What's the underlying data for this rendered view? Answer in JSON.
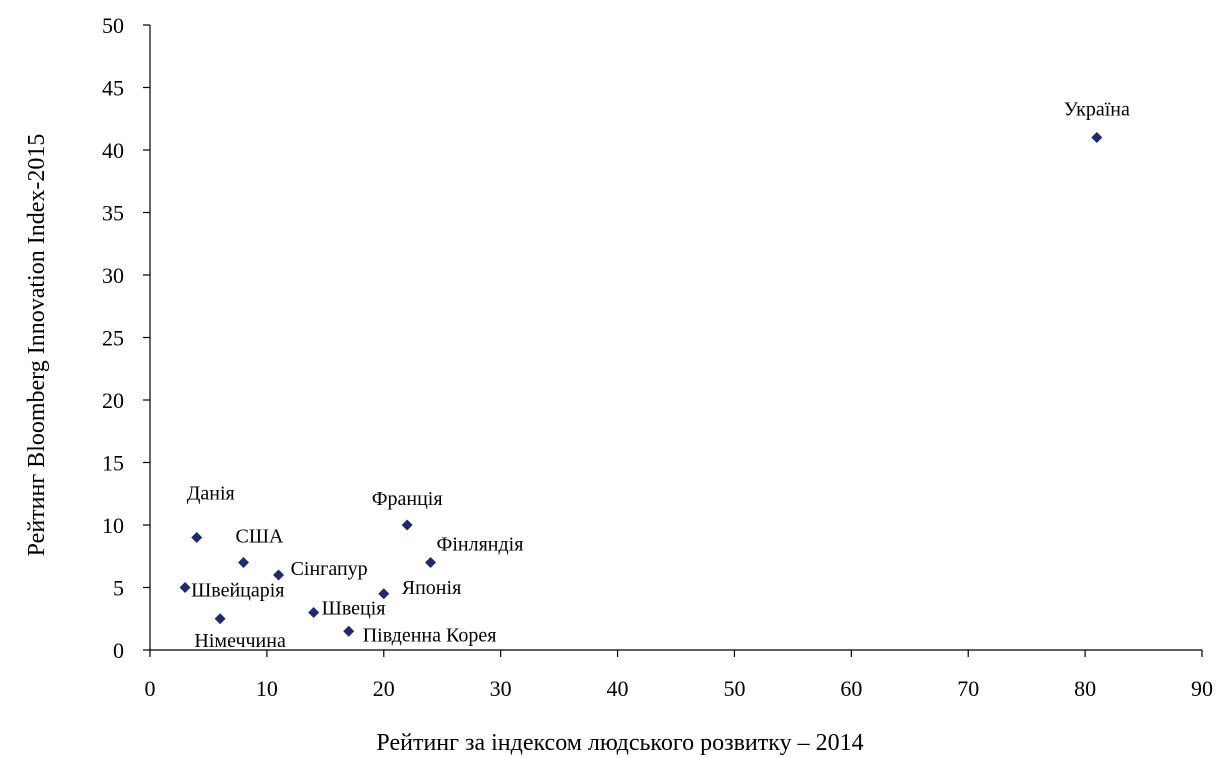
{
  "chart_data": {
    "type": "scatter",
    "title": "",
    "xlabel": "Рейтинг за індексом людського розвитку – 2014",
    "ylabel": "Рейтинг Bloomberg Innovation Index-2015",
    "xlim": [
      0,
      90
    ],
    "ylim": [
      0,
      50
    ],
    "x_ticks": [
      0,
      10,
      20,
      30,
      40,
      50,
      60,
      70,
      80,
      90
    ],
    "y_ticks": [
      0,
      5,
      10,
      15,
      20,
      25,
      30,
      35,
      40,
      45,
      50
    ],
    "grid": false,
    "marker_color": "#1f2a6e",
    "points": [
      {
        "label": "Україна",
        "x": 81,
        "y": 41
      },
      {
        "label": "Данія",
        "x": 4,
        "y": 9
      },
      {
        "label": "США",
        "x": 8,
        "y": 7
      },
      {
        "label": "Сінгапур",
        "x": 11,
        "y": 6
      },
      {
        "label": "Швейцарія",
        "x": 3,
        "y": 5
      },
      {
        "label": "Німеччина",
        "x": 6,
        "y": 2.5
      },
      {
        "label": "Швеція",
        "x": 14,
        "y": 3
      },
      {
        "label": "Південна Корея",
        "x": 17,
        "y": 1.5
      },
      {
        "label": "Франція",
        "x": 22,
        "y": 10
      },
      {
        "label": "Фінляндія",
        "x": 24,
        "y": 7
      },
      {
        "label": "Японія",
        "x": 20,
        "y": 4.5
      }
    ]
  }
}
